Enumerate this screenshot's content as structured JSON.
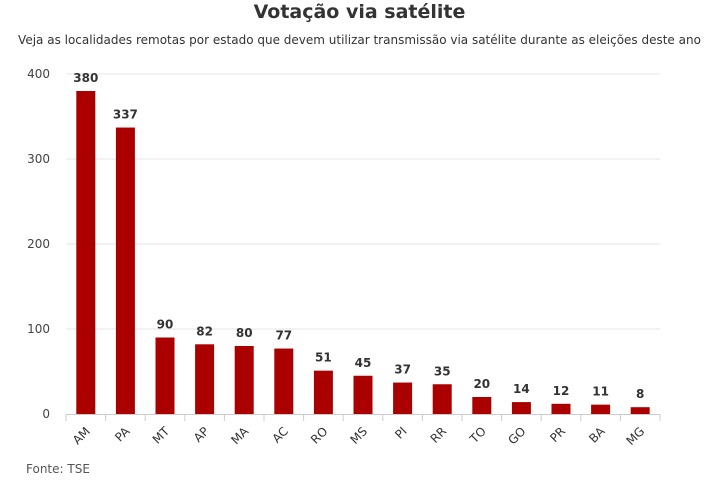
{
  "chart_data": {
    "type": "bar",
    "title": "Votação via satélite",
    "subtitle": "Veja as localidades remotas por estado que devem utilizar transmissão via satélite durante as eleições deste ano",
    "categories": [
      "AM",
      "PA",
      "MT",
      "AP",
      "MA",
      "AC",
      "RO",
      "MS",
      "PI",
      "RR",
      "TO",
      "GO",
      "PR",
      "BA",
      "MG"
    ],
    "values": [
      380,
      337,
      90,
      82,
      80,
      77,
      51,
      45,
      37,
      35,
      20,
      14,
      12,
      11,
      8
    ],
    "yticks": [
      0,
      100,
      200,
      300,
      400
    ],
    "ylim": [
      0,
      400
    ],
    "xlabel": "",
    "ylabel": "",
    "grid": true,
    "legend": "none",
    "bar_color": "#aa0000",
    "source": "Fonte: TSE"
  }
}
